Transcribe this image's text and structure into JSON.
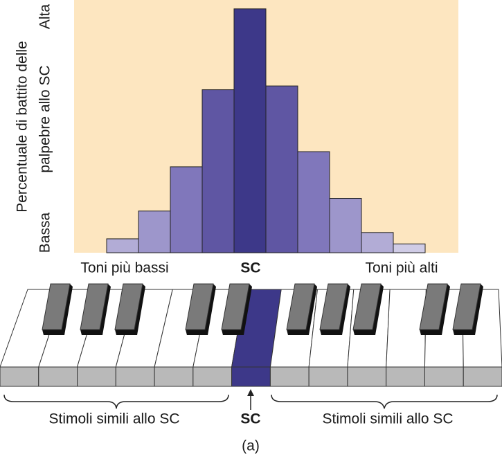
{
  "chart_data": {
    "type": "bar",
    "ylabel": [
      "Percentuale di battito delle",
      "palpebre allo SC"
    ],
    "y_high_label": "Alta",
    "y_low_label": "Bassa",
    "categories": [
      null,
      null,
      null,
      null,
      null,
      null,
      null,
      null,
      null,
      null
    ],
    "values": [
      5.5,
      16.5,
      34,
      64.5,
      96.5,
      66,
      40,
      21.5,
      8,
      3.5
    ],
    "colors": [
      "#b2acd6",
      "#9d96cb",
      "#8077bb",
      "#5f56a3",
      "#3d3889",
      "#5f56a3",
      "#8077bb",
      "#9d96cb",
      "#b2acd6",
      "#d0cce6"
    ],
    "ylim": [
      0,
      100
    ],
    "x_low_label": "Toni più bassi",
    "x_center_label": "SC",
    "x_high_label": "Toni più alti",
    "piano": {
      "left_label": "Stimoli simili allo SC",
      "center_label": "SC",
      "right_label": "Stimoli simili allo SC"
    },
    "caption": "(a)"
  }
}
